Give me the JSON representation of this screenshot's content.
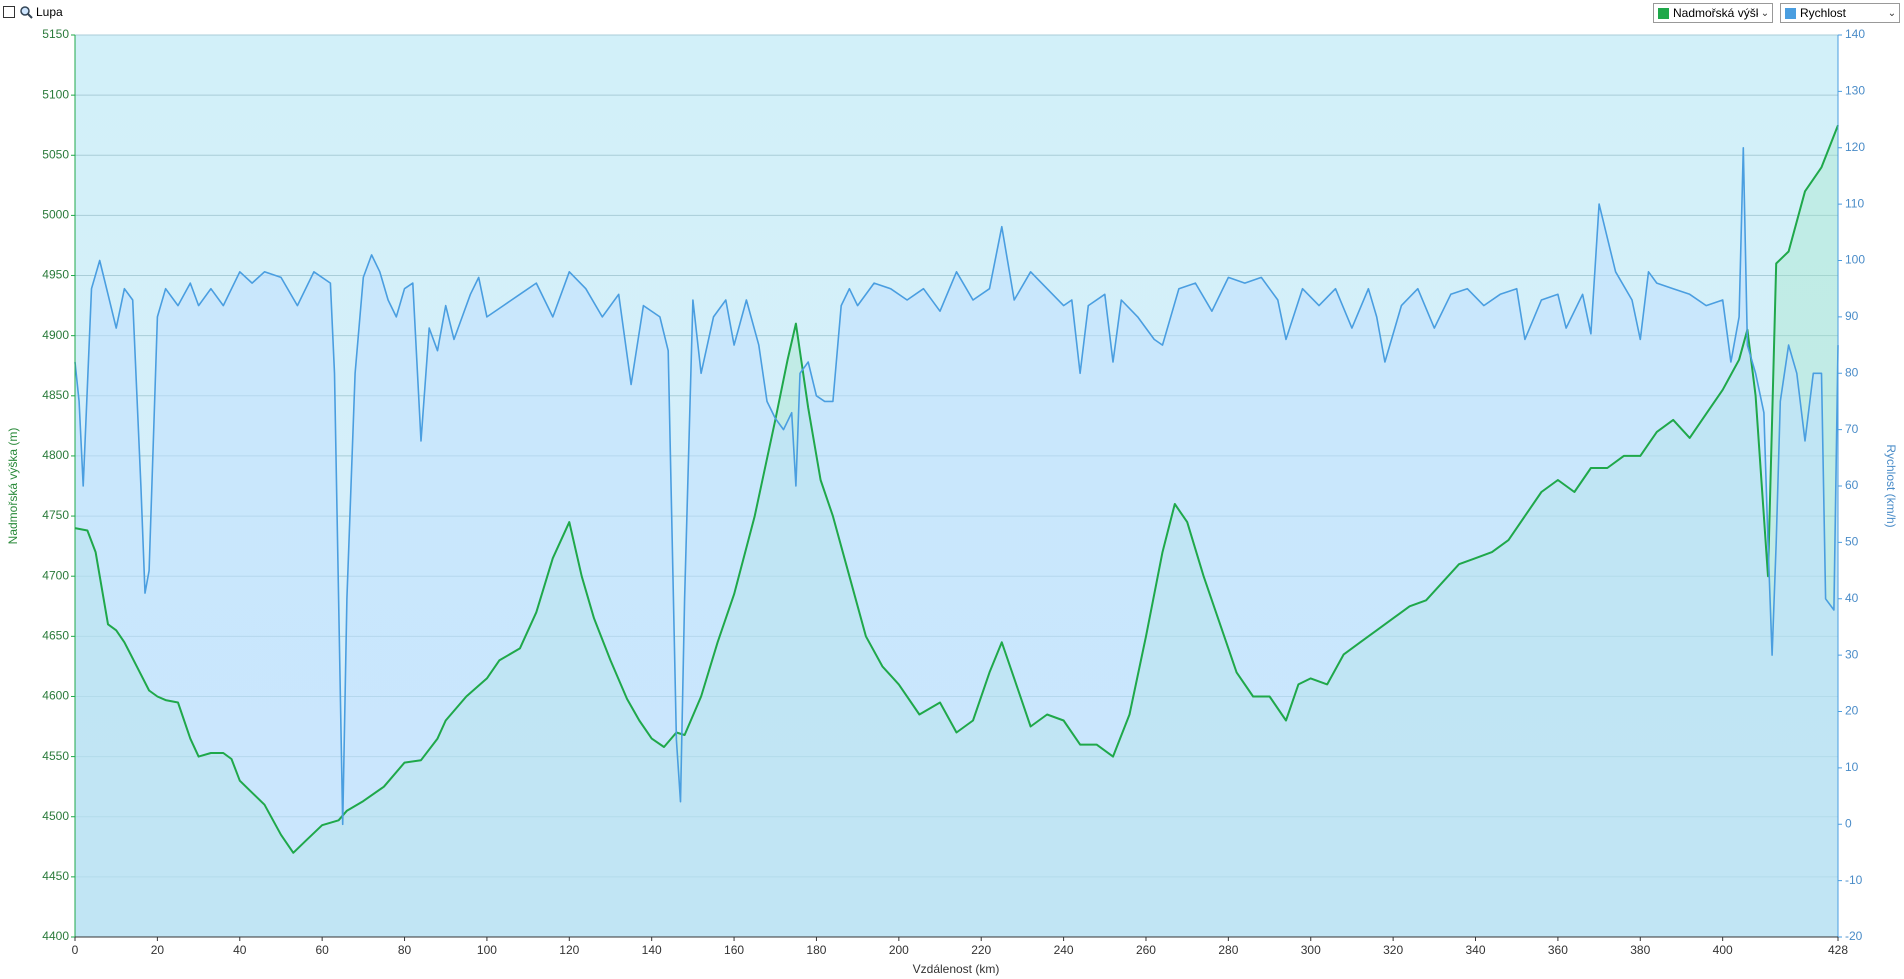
{
  "toolbar": {
    "zoom_label": "Lupa"
  },
  "chart_data": {
    "type": "line",
    "x_label": "Vzdálenost  (km)",
    "y_label": "Nadmořská výška (m)",
    "y2_label": "Rychlost (km/h)",
    "xlim": [
      0,
      428
    ],
    "xticks": [
      0,
      20,
      40,
      60,
      80,
      100,
      120,
      140,
      160,
      180,
      200,
      220,
      240,
      260,
      280,
      300,
      320,
      340,
      360,
      380,
      400,
      428
    ],
    "ylim": [
      4400,
      5150
    ],
    "yticks": [
      4400,
      4450,
      4500,
      4550,
      4600,
      4650,
      4700,
      4750,
      4800,
      4850,
      4900,
      4950,
      5000,
      5050,
      5100,
      5150
    ],
    "y2lim": [
      -20,
      140
    ],
    "y2ticks": [
      -20,
      -10,
      0,
      10,
      20,
      30,
      40,
      50,
      60,
      70,
      80,
      90,
      100,
      110,
      120,
      130,
      140
    ],
    "grid": true,
    "series": [
      {
        "name": "Nadmořská výška",
        "color": "#1fa84a",
        "axis": "y",
        "x": [
          0,
          3,
          5,
          8,
          10,
          12,
          15,
          18,
          20,
          22,
          25,
          28,
          30,
          33,
          36,
          38,
          40,
          43,
          46,
          50,
          53,
          56,
          60,
          64,
          66,
          70,
          75,
          80,
          84,
          88,
          90,
          95,
          100,
          103,
          108,
          112,
          116,
          120,
          123,
          126,
          130,
          134,
          137,
          140,
          143,
          146,
          148,
          152,
          156,
          160,
          165,
          170,
          173,
          175,
          178,
          181,
          184,
          188,
          192,
          196,
          200,
          205,
          210,
          214,
          218,
          222,
          225,
          228,
          232,
          236,
          240,
          244,
          248,
          252,
          256,
          260,
          264,
          267,
          270,
          274,
          278,
          282,
          286,
          290,
          294,
          297,
          300,
          304,
          308,
          312,
          316,
          320,
          324,
          328,
          332,
          336,
          340,
          344,
          348,
          352,
          356,
          360,
          364,
          368,
          372,
          376,
          380,
          384,
          388,
          392,
          396,
          400,
          404,
          406,
          408,
          411,
          413,
          416,
          420,
          424,
          428
        ],
        "values": [
          4740,
          4738,
          4720,
          4660,
          4655,
          4645,
          4625,
          4605,
          4600,
          4597,
          4595,
          4565,
          4550,
          4553,
          4553,
          4548,
          4530,
          4520,
          4510,
          4485,
          4470,
          4480,
          4493,
          4497,
          4505,
          4513,
          4525,
          4545,
          4547,
          4565,
          4580,
          4600,
          4615,
          4630,
          4640,
          4670,
          4715,
          4745,
          4700,
          4665,
          4630,
          4598,
          4580,
          4565,
          4558,
          4570,
          4568,
          4600,
          4645,
          4685,
          4750,
          4830,
          4880,
          4910,
          4840,
          4780,
          4750,
          4700,
          4650,
          4625,
          4610,
          4585,
          4595,
          4570,
          4580,
          4620,
          4645,
          4615,
          4575,
          4585,
          4580,
          4560,
          4560,
          4550,
          4585,
          4650,
          4720,
          4760,
          4745,
          4700,
          4660,
          4620,
          4600,
          4600,
          4580,
          4610,
          4615,
          4610,
          4635,
          4645,
          4655,
          4665,
          4675,
          4680,
          4695,
          4710,
          4715,
          4720,
          4730,
          4750,
          4770,
          4780,
          4770,
          4790,
          4790,
          4800,
          4800,
          4820,
          4830,
          4815,
          4835,
          4855,
          4880,
          4905,
          4850,
          4700,
          4960,
          4970,
          5020,
          5040,
          5075
        ]
      },
      {
        "name": "Rychlost",
        "color": "#4a9ee0",
        "axis": "y2",
        "x": [
          0,
          1,
          2,
          4,
          6,
          8,
          10,
          12,
          14,
          16,
          17,
          18,
          20,
          22,
          25,
          28,
          30,
          33,
          36,
          40,
          43,
          46,
          50,
          54,
          58,
          62,
          63,
          64,
          65,
          66,
          68,
          70,
          72,
          74,
          76,
          78,
          80,
          82,
          84,
          86,
          88,
          90,
          92,
          94,
          96,
          98,
          100,
          104,
          108,
          112,
          116,
          120,
          124,
          128,
          132,
          135,
          138,
          142,
          144,
          146,
          147,
          148,
          150,
          152,
          155,
          158,
          160,
          163,
          166,
          168,
          170,
          172,
          174,
          175,
          176,
          178,
          180,
          182,
          184,
          186,
          188,
          190,
          194,
          198,
          202,
          206,
          210,
          214,
          218,
          222,
          225,
          228,
          232,
          236,
          240,
          242,
          244,
          246,
          250,
          252,
          254,
          258,
          262,
          264,
          268,
          272,
          276,
          280,
          284,
          288,
          292,
          294,
          298,
          302,
          306,
          310,
          314,
          316,
          318,
          322,
          326,
          330,
          334,
          338,
          342,
          346,
          350,
          352,
          356,
          360,
          362,
          366,
          368,
          370,
          374,
          378,
          380,
          382,
          384,
          388,
          392,
          396,
          400,
          402,
          404,
          405,
          406,
          408,
          410,
          411,
          412,
          413,
          414,
          416,
          418,
          420,
          422,
          424,
          425,
          427,
          428
        ],
        "values": [
          82,
          75,
          60,
          95,
          100,
          94,
          88,
          95,
          93,
          60,
          41,
          45,
          90,
          95,
          92,
          96,
          92,
          95,
          92,
          98,
          96,
          98,
          97,
          92,
          98,
          96,
          80,
          40,
          0,
          40,
          80,
          97,
          101,
          98,
          93,
          90,
          95,
          96,
          68,
          88,
          84,
          92,
          86,
          90,
          94,
          97,
          90,
          92,
          94,
          96,
          90,
          98,
          95,
          90,
          94,
          78,
          92,
          90,
          84,
          15,
          4,
          40,
          93,
          80,
          90,
          93,
          85,
          93,
          85,
          75,
          72,
          70,
          73,
          60,
          80,
          82,
          76,
          75,
          75,
          92,
          95,
          92,
          96,
          95,
          93,
          95,
          91,
          98,
          93,
          95,
          106,
          93,
          98,
          95,
          92,
          93,
          80,
          92,
          94,
          82,
          93,
          90,
          86,
          85,
          95,
          96,
          91,
          97,
          96,
          97,
          93,
          86,
          95,
          92,
          95,
          88,
          95,
          90,
          82,
          92,
          95,
          88,
          94,
          95,
          92,
          94,
          95,
          86,
          93,
          94,
          88,
          94,
          87,
          110,
          98,
          93,
          86,
          98,
          96,
          95,
          94,
          92,
          93,
          82,
          90,
          120,
          85,
          80,
          73,
          50,
          30,
          50,
          75,
          85,
          80,
          68,
          80,
          80,
          40,
          38,
          85
        ]
      }
    ]
  }
}
